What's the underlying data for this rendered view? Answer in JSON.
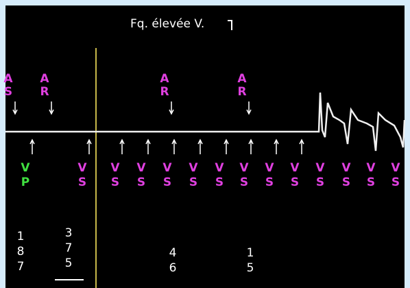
{
  "header": {
    "title": "Fq. élevée V."
  },
  "atrial_markers": [
    "AS",
    "AR",
    "AR",
    "AR"
  ],
  "ventricular_markers": [
    "VP",
    "VS",
    "VS",
    "VS",
    "VS",
    "VS",
    "VS",
    "VS",
    "VS",
    "VS",
    "VS",
    "VS",
    "VS",
    "VS"
  ],
  "intervals": [
    "187",
    "375",
    "46",
    "15"
  ]
}
